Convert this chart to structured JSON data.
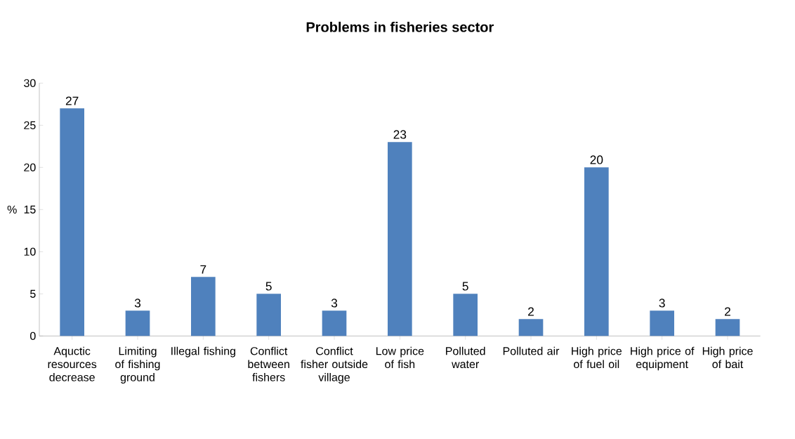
{
  "chart_data": {
    "type": "bar",
    "title": "Problems in fisheries sector",
    "ylabel": "%",
    "categories": [
      "Aquctic resources decrease",
      "Limiting of fishing ground",
      "Illegal fishing",
      "Conflict between fishers",
      "Conflict fisher outside village",
      "Low price of fish",
      "Polluted water",
      "Polluted air",
      "High price of fuel oil",
      "High price of equipment",
      "High price of bait"
    ],
    "values": [
      27,
      3,
      7,
      5,
      3,
      23,
      5,
      2,
      20,
      3,
      2
    ],
    "color": "#4f81bd",
    "ylim": [
      0,
      30
    ],
    "yticks": [
      0,
      5,
      10,
      15,
      20,
      25,
      30
    ],
    "data_labels": true
  }
}
